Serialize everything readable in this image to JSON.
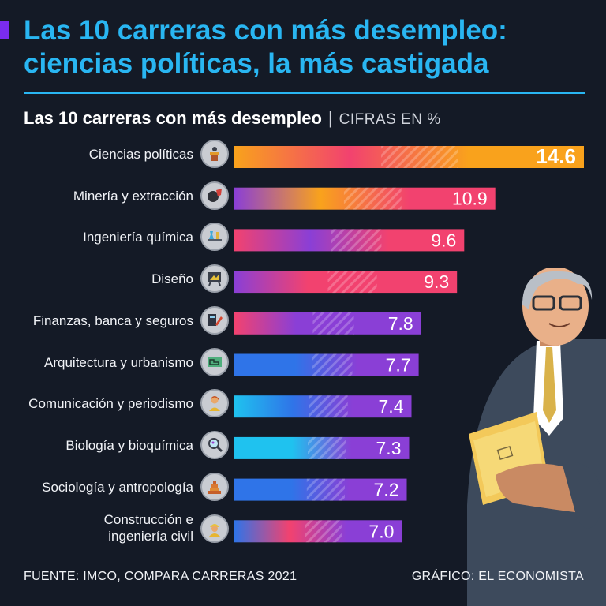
{
  "header": {
    "title_line1": "Las 10 carreras con más desempleo:",
    "title_line2": "ciencias políticas, la más castigada"
  },
  "subtitle": {
    "title": "Las 10 carreras con más desempleo",
    "separator": "|",
    "units": "CIFRAS EN %"
  },
  "chart_data": {
    "type": "bar",
    "orientation": "horizontal",
    "title": "Las 10 carreras con más desempleo",
    "units": "CIFRAS EN %",
    "categories": [
      "Ciencias políticas",
      "Minería y extracción",
      "Ingeniería química",
      "Diseño",
      "Finanzas, banca y seguros",
      "Arquitectura y urbanismo",
      "Comunicación y periodismo",
      "Biología y bioquímica",
      "Sociología y antropología",
      "Construcción e ingeniería civil"
    ],
    "values": [
      14.6,
      10.9,
      9.6,
      9.3,
      7.8,
      7.7,
      7.4,
      7.3,
      7.2,
      7.0
    ],
    "labels": [
      "14.6",
      "10.9",
      "9.6",
      "9.3",
      "7.8",
      "7.7",
      "7.4",
      "7.3",
      "7.2",
      "7.0"
    ],
    "xlim": [
      0,
      14.6
    ],
    "icons": [
      "politician-podium-icon",
      "mining-cart-icon",
      "chemistry-lab-icon",
      "design-easel-icon",
      "finance-calculator-icon",
      "architecture-blueprint-icon",
      "journalist-icon",
      "microscope-magnifier-icon",
      "pyramid-icon",
      "construction-worker-icon"
    ],
    "colors": {
      "orange": "#f9a21c",
      "pink": "#f2426f",
      "purple": "#8a3fd6",
      "blue": "#2f74e8",
      "cyan": "#1fc2ef"
    }
  },
  "footer": {
    "source": "FUENTE: IMCO, COMPARA CARRERAS 2021",
    "credit": "GRÁFICO: EL ECONOMISTA"
  },
  "theme": {
    "background": "#141a26",
    "accent": "#29b6f2",
    "mark": "#7a2cf0"
  }
}
